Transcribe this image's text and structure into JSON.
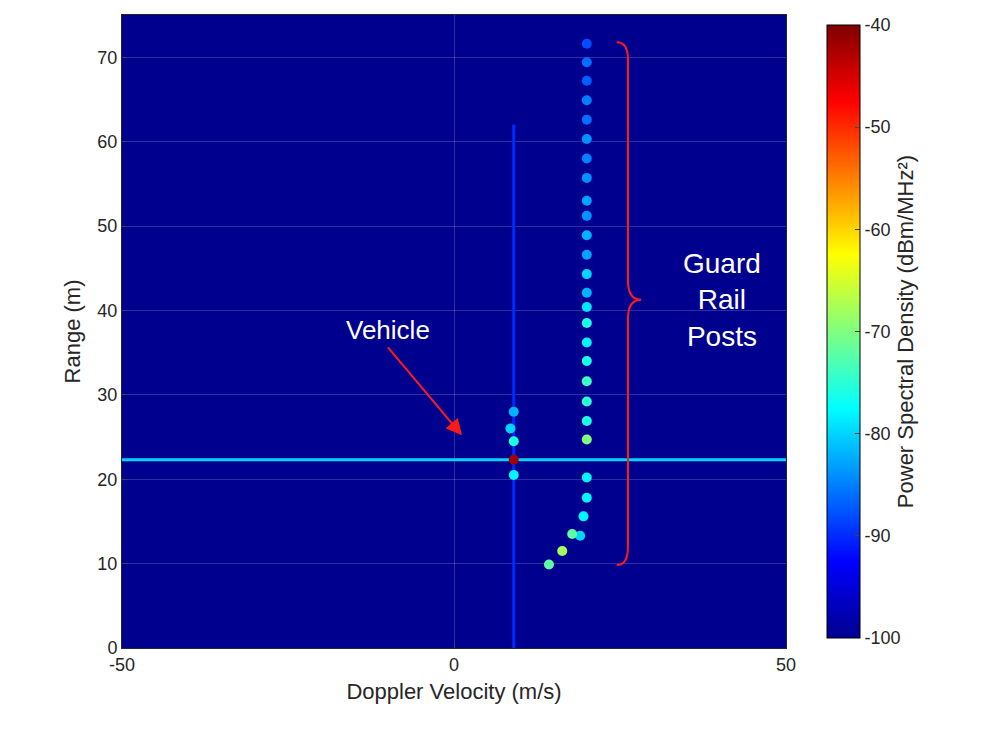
{
  "chart_data": {
    "type": "heatmap",
    "xlabel": "Doppler Velocity (m/s)",
    "ylabel": "Range (m)",
    "xlim": [
      -50,
      50
    ],
    "xticks": [
      -50,
      0,
      50
    ],
    "ylim": [
      0,
      75
    ],
    "yticks": [
      0,
      10,
      20,
      30,
      40,
      50,
      60,
      70
    ],
    "grid": true,
    "colorbar": {
      "label": "Power Spectral Density (dBm/MHz²)",
      "range": [
        -100,
        -40
      ],
      "ticks": [
        -100,
        -90,
        -80,
        -70,
        -60,
        -50,
        -40
      ]
    },
    "streaks": [
      {
        "x": [
          -50,
          50
        ],
        "y": [
          22.3,
          22.3
        ],
        "z": -80
      },
      {
        "x": [
          9,
          9
        ],
        "y": [
          0,
          62
        ],
        "z": -90
      }
    ],
    "cells": {
      "x": [
        20,
        20,
        20,
        20,
        20,
        20,
        20,
        20,
        20,
        20,
        20,
        20,
        20,
        20,
        20,
        20,
        20,
        20,
        20,
        20,
        20,
        20,
        20,
        20,
        19.5,
        19,
        17.8,
        16.3,
        14.3,
        9,
        9,
        9,
        8.5,
        9
      ],
      "y": [
        71.6,
        69.4,
        67.2,
        64.9,
        62.6,
        60.3,
        58.0,
        55.7,
        53.0,
        51.2,
        48.9,
        46.6,
        44.3,
        42.1,
        40.4,
        38.5,
        36.2,
        34.0,
        31.6,
        29.2,
        26.9,
        24.7,
        20.2,
        17.8,
        15.6,
        13.3,
        13.5,
        11.5,
        9.9,
        22.3,
        20.5,
        24.5,
        26.0,
        28.0
      ],
      "z": [
        -88,
        -86,
        -87,
        -85,
        -86,
        -84,
        -85,
        -84,
        -83,
        -84,
        -82,
        -83,
        -80,
        -82,
        -79,
        -76,
        -78,
        -76,
        -74,
        -75,
        -76,
        -70,
        -78,
        -78,
        -78,
        -80,
        -72,
        -68,
        -72,
        -42,
        -78,
        -76,
        -80,
        -82
      ]
    },
    "annotations": [
      {
        "text": "Vehicle"
      },
      {
        "text": "Guard Rail Posts"
      }
    ]
  }
}
